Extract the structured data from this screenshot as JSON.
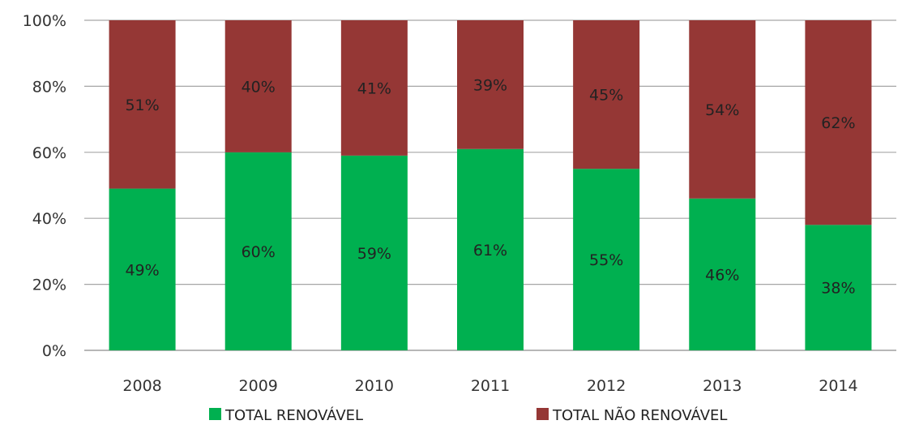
{
  "chart_data": {
    "type": "bar",
    "stacked": true,
    "categories": [
      "2008",
      "2009",
      "2010",
      "2011",
      "2012",
      "2013",
      "2014"
    ],
    "series": [
      {
        "name": "TOTAL RENOVÁVEL",
        "values": [
          49,
          60,
          59,
          61,
          55,
          46,
          38
        ],
        "labels": [
          "49%",
          "60%",
          "59%",
          "61%",
          "55%",
          "46%",
          "38%"
        ],
        "color": "#00b050"
      },
      {
        "name": "TOTAL NÃO RENOVÁVEL",
        "values": [
          51,
          40,
          41,
          39,
          45,
          54,
          62
        ],
        "labels": [
          "51%",
          "40%",
          "41%",
          "39%",
          "45%",
          "54%",
          "62%"
        ],
        "color": "#953735"
      }
    ],
    "ylim": [
      0,
      100
    ],
    "yticks": [
      "0%",
      "20%",
      "40%",
      "60%",
      "80%",
      "100%"
    ],
    "grid": true,
    "legend_position": "bottom"
  }
}
